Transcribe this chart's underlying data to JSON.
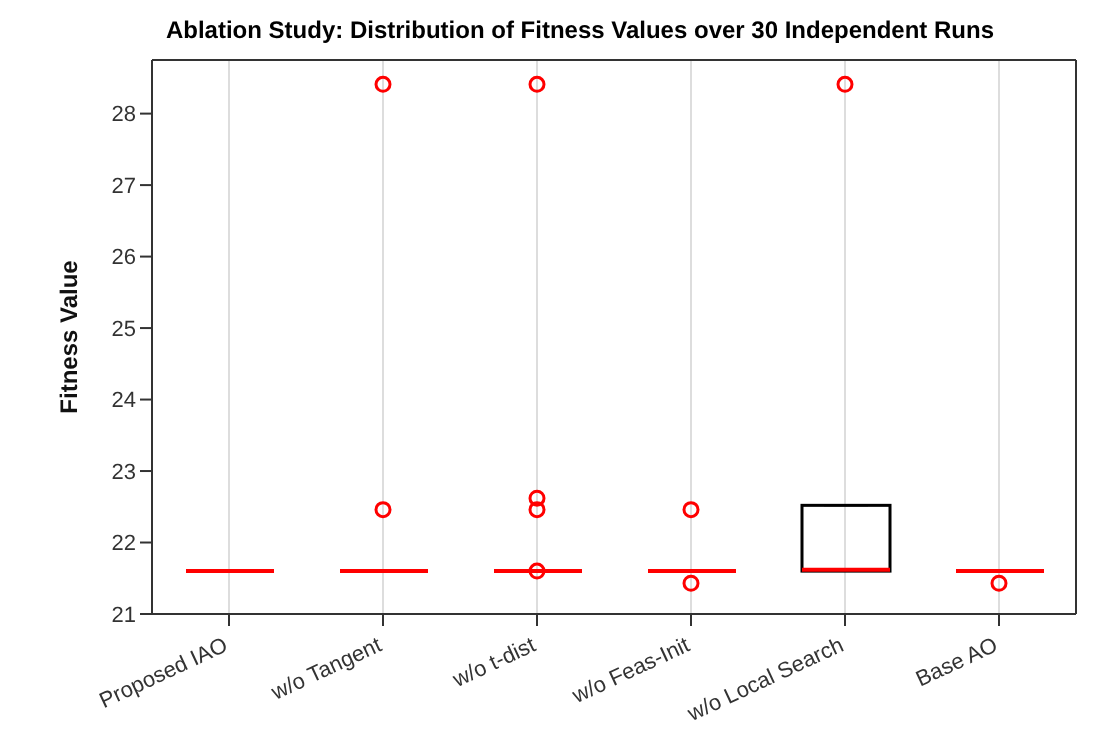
{
  "chart_data": {
    "type": "box",
    "title": "Ablation Study: Distribution of Fitness Values over 30 Independent Runs",
    "ylabel": "Fitness Value",
    "categories": [
      "Proposed IAO",
      "w/o Tangent",
      "w/o t-dist",
      "w/o Feas-Init",
      "w/o Local Search",
      "Base AO"
    ],
    "boxes": [
      {
        "low": 21.6,
        "q1": 21.6,
        "median": 21.6,
        "q3": 21.6,
        "high": 21.6
      },
      {
        "low": 21.6,
        "q1": 21.6,
        "median": 21.6,
        "q3": 21.6,
        "high": 21.6,
        "outliers": [
          22.46,
          28.41
        ]
      },
      {
        "low": 21.6,
        "q1": 21.6,
        "median": 21.6,
        "q3": 21.6,
        "high": 21.6,
        "outliers": [
          21.6,
          22.46,
          22.62,
          28.41
        ]
      },
      {
        "low": 21.6,
        "q1": 21.6,
        "median": 21.6,
        "q3": 21.6,
        "high": 21.6,
        "outliers": [
          21.43,
          22.46
        ]
      },
      {
        "low": 21.6,
        "q1": 21.6,
        "median": 21.62,
        "q3": 22.52,
        "high": 22.52,
        "outliers": [
          28.41
        ]
      },
      {
        "low": 21.6,
        "q1": 21.6,
        "median": 21.6,
        "q3": 21.6,
        "high": 21.6,
        "outliers": [
          21.43
        ]
      }
    ],
    "color": "#ff0000",
    "ylim": [
      21,
      28.75
    ],
    "yticks": [
      21,
      22,
      23,
      24,
      25,
      26,
      27,
      28
    ],
    "grid": true
  }
}
